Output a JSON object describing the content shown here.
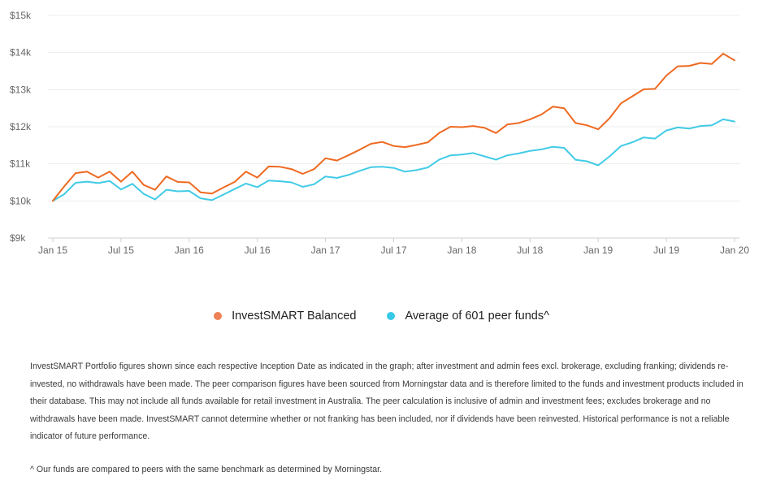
{
  "chart_data": {
    "type": "line",
    "ylim": [
      9000,
      15000
    ],
    "y_ticks": [
      {
        "value": 9000,
        "label": "$9k"
      },
      {
        "value": 10000,
        "label": "$10k"
      },
      {
        "value": 11000,
        "label": "$11k"
      },
      {
        "value": 12000,
        "label": "$12k"
      },
      {
        "value": 13000,
        "label": "$13k"
      },
      {
        "value": 14000,
        "label": "$14k"
      },
      {
        "value": 15000,
        "label": "$15k"
      }
    ],
    "x_ticks": [
      {
        "month": 0,
        "label": "Jan 15"
      },
      {
        "month": 6,
        "label": "Jul 15"
      },
      {
        "month": 12,
        "label": "Jan 16"
      },
      {
        "month": 18,
        "label": "Jul 16"
      },
      {
        "month": 24,
        "label": "Jan 17"
      },
      {
        "month": 30,
        "label": "Jul 17"
      },
      {
        "month": 36,
        "label": "Jan 18"
      },
      {
        "month": 42,
        "label": "Jul 18"
      },
      {
        "month": 48,
        "label": "Jan 19"
      },
      {
        "month": 54,
        "label": "Jul 19"
      },
      {
        "month": 60,
        "label": "Jan 20"
      }
    ],
    "grid": true,
    "legend_position": "bottom-center",
    "series": [
      {
        "name": "InvestSMART Balanced",
        "color": "#ee6a21",
        "values": [
          10000,
          10390,
          10750,
          10790,
          10630,
          10790,
          10520,
          10790,
          10430,
          10300,
          10660,
          10510,
          10500,
          10230,
          10200,
          10360,
          10510,
          10790,
          10630,
          10930,
          10920,
          10860,
          10730,
          10860,
          11150,
          11090,
          11230,
          11380,
          11540,
          11590,
          11480,
          11450,
          11510,
          11580,
          11830,
          12000,
          11990,
          12020,
          11970,
          11830,
          12060,
          12100,
          12200,
          12330,
          12540,
          12500,
          12100,
          12040,
          11930,
          12230,
          12630,
          12820,
          13010,
          13020,
          13380,
          13630,
          13640,
          13720,
          13690,
          13970,
          13790
        ]
      },
      {
        "name": "Average of 601 peer funds^",
        "color": "#42cbe6",
        "values": [
          10000,
          10180,
          10490,
          10520,
          10480,
          10540,
          10310,
          10460,
          10190,
          10040,
          10300,
          10260,
          10270,
          10070,
          10020,
          10170,
          10320,
          10470,
          10370,
          10550,
          10530,
          10500,
          10380,
          10450,
          10660,
          10620,
          10700,
          10810,
          10910,
          10920,
          10890,
          10790,
          10830,
          10900,
          11110,
          11230,
          11250,
          11290,
          11200,
          11110,
          11230,
          11280,
          11350,
          11390,
          11460,
          11430,
          11110,
          11070,
          10960,
          11200,
          11480,
          11580,
          11710,
          11680,
          11900,
          11980,
          11950,
          12020,
          12040,
          12200,
          12140
        ]
      }
    ]
  },
  "legend": {
    "series_1": "InvestSMART Balanced",
    "series_2": "Average of 601 peer funds^"
  },
  "disclaimer": "InvestSMART Portfolio figures shown since each respective Inception Date as indicated in the graph; after investment and admin fees excl. brokerage, excluding franking; dividends re-invested, no withdrawals have been made. The peer comparison figures have been sourced from Morningstar data and is therefore limited to the funds and investment products included in their database. This may not include all funds available for retail investment in Australia. The peer calculation is inclusive of admin and investment fees; excludes brokerage and no withdrawals have been made. InvestSMART cannot determine whether or not franking has been included, nor if dividends have been reinvested. Historical performance is not a reliable indicator of future performance.",
  "footnote": "^ Our funds are compared to peers with the same benchmark as determined by Morningstar."
}
